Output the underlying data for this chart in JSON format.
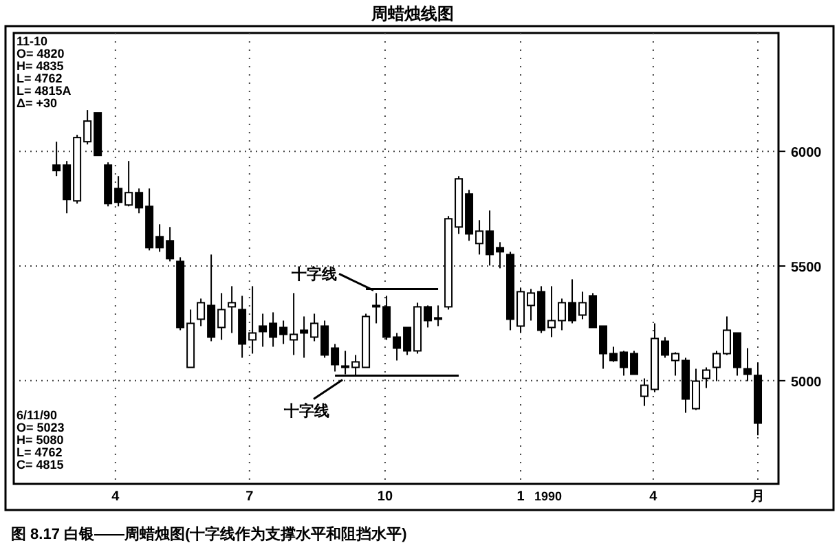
{
  "chart_data": {
    "type": "candlestick",
    "title": "周蜡烛线图",
    "x": [
      "1989-02-20",
      "1989-02-27",
      "1989-03-06",
      "1989-03-13",
      "1989-03-20",
      "1989-03-27",
      "1989-04-03",
      "1989-04-10",
      "1989-04-17",
      "1989-04-24",
      "1989-05-01",
      "1989-05-08",
      "1989-05-15",
      "1989-05-22",
      "1989-05-29",
      "1989-06-05",
      "1989-06-12",
      "1989-06-19",
      "1989-06-26",
      "1989-07-03",
      "1989-07-10",
      "1989-07-17",
      "1989-07-24",
      "1989-07-31",
      "1989-08-07",
      "1989-08-14",
      "1989-08-21",
      "1989-08-28",
      "1989-09-04",
      "1989-09-11",
      "1989-09-18",
      "1989-09-25",
      "1989-10-02",
      "1989-10-09",
      "1989-10-16",
      "1989-10-23",
      "1989-10-30",
      "1989-11-06",
      "1989-11-13",
      "1989-11-20",
      "1989-11-27",
      "1989-12-04",
      "1989-12-11",
      "1989-12-18",
      "1989-12-25",
      "1990-01-01",
      "1990-01-08",
      "1990-01-15",
      "1990-01-22",
      "1990-01-29",
      "1990-02-05",
      "1990-02-12",
      "1990-02-19",
      "1990-02-26",
      "1990-03-05",
      "1990-03-12",
      "1990-03-19",
      "1990-03-26",
      "1990-04-02",
      "1990-04-09",
      "1990-04-16",
      "1990-04-23",
      "1990-04-30",
      "1990-05-07",
      "1990-05-14",
      "1990-05-21",
      "1990-05-28",
      "1990-06-04",
      "1990-06-11"
    ],
    "ohlc": [
      [
        5940,
        6042,
        5892,
        5916
      ],
      [
        5940,
        5958,
        5730,
        5790
      ],
      [
        5784,
        6072,
        5772,
        6060
      ],
      [
        6042,
        6180,
        6030,
        6132
      ],
      [
        6168,
        6168,
        5982,
        5982
      ],
      [
        5940,
        5952,
        5760,
        5772
      ],
      [
        5838,
        5892,
        5760,
        5778
      ],
      [
        5766,
        5958,
        5760,
        5820
      ],
      [
        5820,
        5838,
        5730,
        5754
      ],
      [
        5760,
        5838,
        5568,
        5580
      ],
      [
        5628,
        5682,
        5562,
        5580
      ],
      [
        5610,
        5670,
        5520,
        5532
      ],
      [
        5520,
        5538,
        5220,
        5232
      ],
      [
        5058,
        5310,
        5058,
        5250
      ],
      [
        5268,
        5358,
        5238,
        5340
      ],
      [
        5328,
        5550,
        5172,
        5190
      ],
      [
        5232,
        5382,
        5178,
        5310
      ],
      [
        5322,
        5412,
        5208,
        5340
      ],
      [
        5310,
        5370,
        5100,
        5160
      ],
      [
        5178,
        5412,
        5118,
        5208
      ],
      [
        5238,
        5292,
        5148,
        5214
      ],
      [
        5250,
        5298,
        5148,
        5190
      ],
      [
        5232,
        5262,
        5160,
        5202
      ],
      [
        5178,
        5382,
        5112,
        5202
      ],
      [
        5220,
        5280,
        5100,
        5208
      ],
      [
        5190,
        5292,
        5172,
        5250
      ],
      [
        5238,
        5262,
        5100,
        5112
      ],
      [
        5142,
        5160,
        5040,
        5070
      ],
      [
        5064,
        5130,
        5028,
        5058
      ],
      [
        5058,
        5112,
        5022,
        5082
      ],
      [
        5058,
        5292,
        5058,
        5280
      ],
      [
        5328,
        5382,
        5250,
        5322
      ],
      [
        5322,
        5370,
        5178,
        5190
      ],
      [
        5190,
        5208,
        5088,
        5142
      ],
      [
        5232,
        5232,
        5112,
        5130
      ],
      [
        5130,
        5340,
        5118,
        5322
      ],
      [
        5322,
        5328,
        5232,
        5262
      ],
      [
        5274,
        5328,
        5238,
        5268
      ],
      [
        5322,
        5718,
        5310,
        5706
      ],
      [
        5670,
        5892,
        5640,
        5880
      ],
      [
        5814,
        5832,
        5610,
        5640
      ],
      [
        5598,
        5700,
        5550,
        5652
      ],
      [
        5652,
        5742,
        5502,
        5550
      ],
      [
        5580,
        5604,
        5490,
        5562
      ],
      [
        5550,
        5562,
        5220,
        5268
      ],
      [
        5238,
        5406,
        5208,
        5388
      ],
      [
        5328,
        5400,
        5262,
        5382
      ],
      [
        5388,
        5412,
        5208,
        5220
      ],
      [
        5232,
        5412,
        5190,
        5262
      ],
      [
        5262,
        5358,
        5220,
        5340
      ],
      [
        5340,
        5442,
        5250,
        5262
      ],
      [
        5286,
        5388,
        5268,
        5340
      ],
      [
        5370,
        5382,
        5232,
        5232
      ],
      [
        5238,
        5238,
        5052,
        5118
      ],
      [
        5118,
        5148,
        5082,
        5088
      ],
      [
        5124,
        5130,
        5022,
        5058
      ],
      [
        5118,
        5130,
        5028,
        5028
      ],
      [
        4932,
        5010,
        4890,
        4980
      ],
      [
        4962,
        5250,
        4950,
        5184
      ],
      [
        5172,
        5190,
        5100,
        5112
      ],
      [
        5088,
        5124,
        5022,
        5118
      ],
      [
        5088,
        5100,
        4860,
        4920
      ],
      [
        4878,
        5052,
        4872,
        4998
      ],
      [
        5010,
        5058,
        4968,
        5046
      ],
      [
        5058,
        5130,
        4998,
        5118
      ],
      [
        5118,
        5280,
        5112,
        5220
      ],
      [
        5208,
        5208,
        5022,
        5058
      ],
      [
        5052,
        5142,
        4998,
        5028
      ],
      [
        5023,
        5080,
        4762,
        4815
      ]
    ],
    "series": [
      {
        "type": "line",
        "color": "#000000",
        "x": [
          "1989-08-28",
          "1989-11-20"
        ],
        "values": [
          5022,
          5022
        ]
      },
      {
        "type": "line",
        "color": "#000000",
        "x": [
          "1989-09-18",
          "1989-11-06"
        ],
        "values": [
          5400,
          5400
        ]
      }
    ],
    "xlim": [
      "1989-01-22",
      "1990-06-25"
    ],
    "xticks": [
      {
        "value": "1989-04-01",
        "label": "4"
      },
      {
        "value": "1989-07-01",
        "label": "7"
      },
      {
        "value": "1989-10-01",
        "label": "10"
      },
      {
        "value": "1990-01-01",
        "label": "1"
      },
      {
        "value": "1990-04-01",
        "label": "4"
      },
      {
        "value": "1990-06-11",
        "label": "月"
      }
    ],
    "ylim": [
      4550,
      6516
    ],
    "yticks": [
      5000,
      5500,
      6000
    ],
    "grid": true,
    "annotations": [
      {
        "text": "十字线",
        "x": "1989-09-25",
        "y": 5382
      },
      {
        "text": "十字线",
        "x": "1989-09-04",
        "y": 5028
      },
      "11-10",
      "O= 4820",
      "H= 4835",
      "L= 4762",
      "L= 4815A",
      "Δ= +30",
      "6/11/90",
      "O= 5023",
      "H= 5080",
      "L= 4762",
      "C= 4815",
      "1990",
      "图 8.17  白银——周蜡烛图(十字线作为支撑水平和阻挡水平)"
    ]
  }
}
